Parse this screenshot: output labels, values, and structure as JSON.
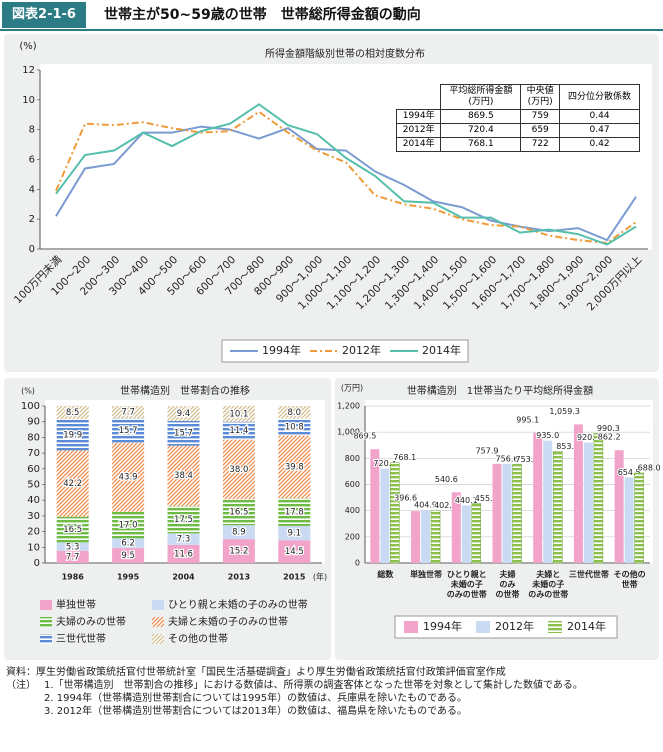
{
  "header": {
    "label": "図表2-1-6",
    "title": "世帯主が50~59歳の世帯　世帯総所得金額の動向"
  },
  "chart_data": [
    {
      "type": "line",
      "title": "所得金額階級別世帯の相対度数分布",
      "y_label": "(%)",
      "categories": [
        "100万円未満",
        "100～200",
        "200～300",
        "300～400",
        "400～500",
        "500～600",
        "600～700",
        "700～800",
        "800～900",
        "900～1,000",
        "1,000～1,100",
        "1,100～1,200",
        "1,200～1,300",
        "1,300～1,400",
        "1,400～1,500",
        "1,500～1,600",
        "1,600～1,700",
        "1,700～1,800",
        "1,800～1,900",
        "1,900～2,000",
        "2,000万円以上"
      ],
      "series": [
        {
          "name": "1994年",
          "color": "#7b9bd1",
          "dash": "solid",
          "values": [
            2.2,
            5.4,
            5.7,
            7.8,
            7.8,
            8.2,
            8.0,
            7.4,
            8.1,
            6.7,
            6.6,
            5.2,
            4.3,
            3.2,
            2.8,
            1.9,
            1.5,
            1.2,
            1.4,
            0.6,
            3.5
          ]
        },
        {
          "name": "2012年",
          "color": "#ee9b3a",
          "dash": "dash-dot",
          "values": [
            3.9,
            8.4,
            8.3,
            8.5,
            8.1,
            7.8,
            7.9,
            9.2,
            7.8,
            6.6,
            5.8,
            3.6,
            3.0,
            2.7,
            2.0,
            1.6,
            1.5,
            0.9,
            0.6,
            0.4,
            1.8
          ]
        },
        {
          "name": "2014年",
          "color": "#55bfac",
          "dash": "solid",
          "values": [
            3.7,
            6.3,
            6.6,
            7.8,
            6.9,
            7.9,
            8.4,
            9.7,
            8.3,
            7.7,
            6.1,
            4.9,
            3.2,
            3.1,
            2.1,
            2.1,
            1.1,
            1.3,
            1.0,
            0.3,
            1.5
          ]
        }
      ],
      "ylim": [
        0,
        12
      ],
      "yticks": [
        0,
        2,
        4,
        6,
        8,
        10,
        12
      ],
      "grid": false,
      "legend": "bottom",
      "table": {
        "columns": [
          "平均総所得金額\n(万円)",
          "中央値\n(万円)",
          "四分位分散係数"
        ],
        "rows": [
          [
            "1994年",
            "869.5",
            "759",
            "0.44"
          ],
          [
            "2012年",
            "720.4",
            "659",
            "0.47"
          ],
          [
            "2014年",
            "768.1",
            "722",
            "0.42"
          ]
        ]
      }
    },
    {
      "type": "stacked-bar",
      "title": "世帯構造別　世帯割合の推移",
      "y_label": "(%)",
      "x_label": "(年)",
      "categories": [
        "1986",
        "1995",
        "2004",
        "2013",
        "2015"
      ],
      "series": [
        {
          "name": "単独世帯",
          "color": "#f2a3c9",
          "pattern": "solid",
          "values": [
            7.7,
            9.5,
            11.6,
            15.2,
            14.5
          ]
        },
        {
          "name": "ひとり親と未婚の子のみの世帯",
          "color": "#c9daf2",
          "pattern": "solid",
          "values": [
            5.3,
            6.2,
            7.3,
            8.9,
            9.1
          ]
        },
        {
          "name": "夫婦のみの世帯",
          "color": "#6dbb45",
          "pattern": "hstripe",
          "values": [
            16.5,
            17.0,
            17.5,
            16.5,
            17.8
          ],
          "value_labels": [
            "16.5",
            "17.0",
            "17.5",
            "16.5",
            "17.8"
          ]
        },
        {
          "name": "夫婦と未婚の子のみの世帯",
          "color": "#ef8c4c",
          "pattern": "diag",
          "values": [
            42.2,
            43.9,
            38.4,
            38.0,
            39.8
          ],
          "value_labels": [
            "42.2",
            "43.9",
            "38.4",
            "38.0",
            "39.8"
          ]
        },
        {
          "name": "三世代世帯",
          "color": "#5b8bd6",
          "pattern": "hstripe",
          "values": [
            19.9,
            15.7,
            15.7,
            11.4,
            10.8
          ]
        },
        {
          "name": "その他の世帯",
          "color": "#d2bd8e",
          "pattern": "diag",
          "values": [
            8.5,
            7.7,
            9.4,
            10.1,
            8.0
          ],
          "value_labels": [
            "8.5",
            "7.7",
            "9.4",
            "10.1",
            "8.0"
          ]
        }
      ],
      "ylim": [
        0,
        100
      ],
      "yticks": [
        0,
        10,
        20,
        30,
        40,
        50,
        60,
        70,
        80,
        90,
        100
      ],
      "grid": false,
      "legend": "bottom"
    },
    {
      "type": "grouped-bar",
      "title": "世帯構造別　1世帯当たり平均総所得金額",
      "y_label": "(万円)",
      "categories": [
        "総数",
        "単独世帯",
        "ひとり親と\n未婚の子\nのみの世帯",
        "夫婦\nのみ\nの世帯",
        "夫婦と\n未婚の子\nのみの世帯",
        "三世代世帯",
        "その他の\n世帯"
      ],
      "series": [
        {
          "name": "1994年",
          "color": "#f2a3c9",
          "pattern": "solid",
          "values": [
            869.5,
            396.6,
            540.6,
            757.9,
            995.1,
            1059.3,
            862.2
          ],
          "value_labels": [
            "869.5",
            "396.6",
            "540.6",
            "757.9",
            "995.1",
            "1,059.3",
            "862.2"
          ]
        },
        {
          "name": "2012年",
          "color": "#c9daf2",
          "pattern": "solid",
          "values": [
            720.4,
            404.9,
            440.1,
            756.6,
            935.0,
            920.4,
            654.5
          ],
          "value_labels": [
            "720.4",
            "404.9",
            "440.1",
            "756.6",
            "935.0",
            "920.4",
            "654.5"
          ]
        },
        {
          "name": "2014年",
          "color": "#8cc04c",
          "pattern": "hstripe",
          "values": [
            768.1,
            402.7,
            455.5,
            753.4,
            853.9,
            990.3,
            688.0
          ],
          "value_labels": [
            "768.1",
            "402.7",
            "455.5",
            "753.4",
            "853.9",
            "990.3",
            "688.0"
          ]
        }
      ],
      "ylim": [
        0,
        1200
      ],
      "yticks": [
        0,
        200,
        400,
        600,
        800,
        {
          "value": 1000,
          "label": "1,000"
        },
        {
          "value": 1200,
          "label": "1,200"
        }
      ],
      "grid": true,
      "legend": "bottom"
    }
  ],
  "notes": {
    "source": "資料：厚生労働省政策統括官付世帯統計室「国民生活基礎調査」より厚生労働省政策統括官付政策評価官室作成",
    "label": "（注）",
    "items": [
      "1.「世帯構造別　世帯割合の推移」における数値は、所得票の調査客体となった世帯を対象として集計した数値である。",
      "2. 1994年（世帯構造別世帯割合については1995年）の数値は、兵庫県を除いたものである。",
      "3. 2012年（世帯構造別世帯割合については2013年）の数値は、福島県を除いたものである。"
    ]
  }
}
